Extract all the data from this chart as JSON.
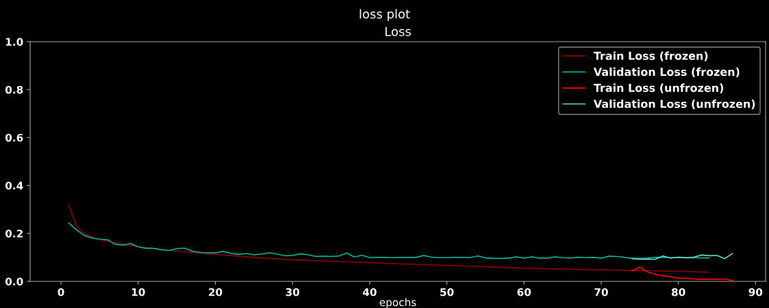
{
  "chart_data": {
    "type": "line",
    "title": "Loss",
    "subtitle": "loss plot",
    "xlabel": "epochs",
    "xlim": [
      -4,
      91.3
    ],
    "xticks": [
      0,
      10,
      20,
      30,
      40,
      50,
      60,
      70,
      80,
      90
    ],
    "ylim": [
      0,
      1
    ],
    "yticks": [
      {
        "value": 0,
        "label": "0.0"
      },
      {
        "value": 0.2,
        "label": "0.2"
      },
      {
        "value": 0.4,
        "label": "0.4"
      },
      {
        "value": 0.6,
        "label": "0.6"
      },
      {
        "value": 0.8,
        "label": "0.8"
      },
      {
        "value": 1,
        "label": "1.0"
      }
    ],
    "grid": false,
    "legend": "top right",
    "marker": "none",
    "line_style": "solid",
    "series": [
      {
        "name": "Train Loss (frozen)",
        "color": "#8b0000",
        "x": [
          1,
          2,
          3,
          4,
          5,
          6,
          8,
          10,
          15,
          20,
          25,
          30,
          35,
          40,
          45,
          50,
          55,
          60,
          65,
          70,
          75,
          80,
          84
        ],
        "values": [
          0.32,
          0.23,
          0.2,
          0.185,
          0.175,
          0.168,
          0.155,
          0.145,
          0.126,
          0.113,
          0.1,
          0.09,
          0.084,
          0.078,
          0.072,
          0.067,
          0.061,
          0.055,
          0.051,
          0.048,
          0.045,
          0.042,
          0.038
        ]
      },
      {
        "name": "Validation Loss (frozen)",
        "color": "#00b39a",
        "x": [
          1,
          2,
          3,
          4,
          5,
          6,
          7,
          8,
          9,
          10,
          11,
          12,
          13,
          14,
          15,
          16,
          17,
          18,
          19,
          20,
          21,
          22,
          23,
          24,
          25,
          26,
          27,
          28,
          29,
          30,
          31,
          32,
          33,
          34,
          35,
          36,
          37,
          38,
          39,
          40,
          41,
          42,
          43,
          44,
          45,
          46,
          47,
          48,
          49,
          50,
          51,
          52,
          53,
          54,
          55,
          56,
          57,
          58,
          59,
          60,
          61,
          62,
          63,
          64,
          65,
          66,
          67,
          68,
          69,
          70,
          71,
          72,
          73,
          74,
          75,
          76,
          77,
          78,
          79,
          80,
          81,
          82,
          83,
          84
        ],
        "values": [
          0.244,
          0.215,
          0.192,
          0.181,
          0.176,
          0.174,
          0.155,
          0.151,
          0.158,
          0.144,
          0.138,
          0.138,
          0.132,
          0.129,
          0.136,
          0.139,
          0.126,
          0.121,
          0.119,
          0.119,
          0.125,
          0.117,
          0.113,
          0.116,
          0.111,
          0.114,
          0.119,
          0.114,
          0.107,
          0.108,
          0.115,
          0.111,
          0.104,
          0.105,
          0.104,
          0.106,
          0.118,
          0.102,
          0.109,
          0.099,
          0.1,
          0.1,
          0.099,
          0.1,
          0.1,
          0.1,
          0.108,
          0.101,
          0.099,
          0.099,
          0.1,
          0.1,
          0.099,
          0.106,
          0.098,
          0.096,
          0.096,
          0.097,
          0.102,
          0.097,
          0.102,
          0.097,
          0.097,
          0.102,
          0.099,
          0.097,
          0.101,
          0.099,
          0.1,
          0.097,
          0.105,
          0.104,
          0.1,
          0.096,
          0.096,
          0.097,
          0.1,
          0.1,
          0.099,
          0.1,
          0.098,
          0.099,
          0.098,
          0.098
        ]
      },
      {
        "name": "Train Loss (unfrozen)",
        "color": "#ff0000",
        "x": [
          74,
          75,
          76,
          77,
          78,
          79,
          80,
          81,
          82,
          83,
          84,
          85,
          86,
          87
        ],
        "values": [
          0.043,
          0.06,
          0.039,
          0.029,
          0.024,
          0.019,
          0.013,
          0.013,
          0.01,
          0.009,
          0.009,
          0.009,
          0.01,
          0.004
        ]
      },
      {
        "name": "Validation Loss (unfrozen)",
        "color": "#66d6c6",
        "x": [
          74,
          75,
          76,
          77,
          78,
          79,
          80,
          81,
          82,
          83,
          84,
          85,
          86,
          87
        ],
        "values": [
          0.095,
          0.092,
          0.093,
          0.092,
          0.106,
          0.097,
          0.101,
          0.099,
          0.101,
          0.11,
          0.107,
          0.108,
          0.095,
          0.116
        ]
      }
    ]
  }
}
